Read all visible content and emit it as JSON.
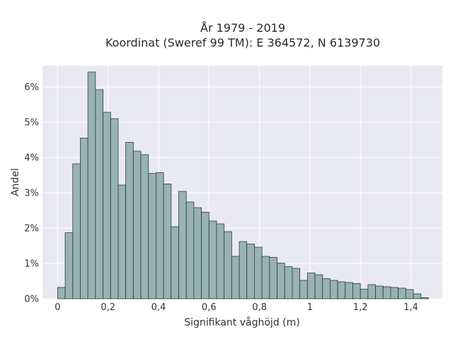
{
  "chart_data": {
    "type": "bar",
    "title": "År 1979 - 2019",
    "subtitle": "Koordinat (Sweref 99 TM): E 364572, N 6139730",
    "xlabel": "Signifikant våghöjd (m)",
    "ylabel": "Andel",
    "xlim": [
      -0.06,
      1.525
    ],
    "ylim": [
      0,
      6.6
    ],
    "bin_width": 0.03,
    "bin_start": 0.0,
    "grid": true,
    "x_ticks": [
      0,
      0.2,
      0.4,
      0.6,
      0.8,
      1.0,
      1.2,
      1.4
    ],
    "x_tick_labels": [
      "0",
      "0,2",
      "0,4",
      "0,6",
      "0,8",
      "1",
      "1,2",
      "1,4"
    ],
    "y_ticks": [
      0,
      1,
      2,
      3,
      4,
      5,
      6
    ],
    "y_tick_labels": [
      "0%",
      "1%",
      "2%",
      "3%",
      "4%",
      "5%",
      "6%"
    ],
    "values": [
      0.32,
      1.87,
      3.82,
      4.55,
      6.42,
      5.92,
      5.28,
      5.1,
      3.22,
      4.43,
      4.18,
      4.08,
      3.55,
      3.57,
      3.25,
      2.04,
      3.04,
      2.74,
      2.58,
      2.45,
      2.2,
      2.12,
      1.9,
      1.2,
      1.62,
      1.55,
      1.46,
      1.2,
      1.17,
      1.01,
      0.91,
      0.86,
      0.52,
      0.73,
      0.68,
      0.57,
      0.52,
      0.48,
      0.46,
      0.43,
      0.27,
      0.4,
      0.36,
      0.34,
      0.32,
      0.3,
      0.26,
      0.14,
      0.03
    ]
  }
}
